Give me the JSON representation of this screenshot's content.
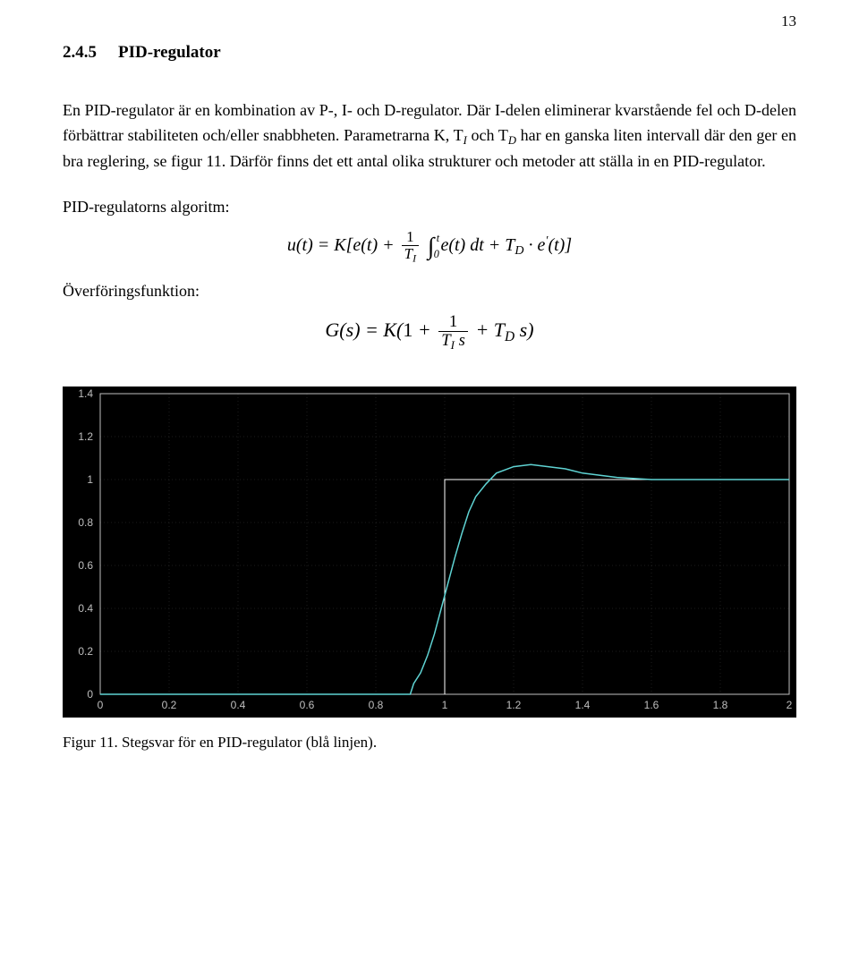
{
  "page_number": "13",
  "section": {
    "number": "2.4.5",
    "title": "PID-regulator"
  },
  "paragraph": "En PID-regulator är en kombination av P-, I- och D-regulator. Där I-delen eliminerar kvarstående fel och D-delen förbättrar stabiliteten och/eller snabbheten. Parametrarna K, T₁ och T_D har en ganska liten intervall där den ger en bra reglering, se figur 11. Därför finns det ett antal olika strukturer och metoder att ställa in en PID-regulator.",
  "algo_label": "PID-regulatorns algoritm:",
  "transfer_label": "Överföringsfunktion:",
  "caption": "Figur 11. Stegsvar för en PID-regulator (blå linjen).",
  "chart": {
    "type": "line",
    "background_color": "#000000",
    "axis_color": "#c0c0c0",
    "grid_color": "#3a3a3a",
    "tick_label_color": "#bfbfbf",
    "tick_fontsize": 12,
    "xlim": [
      0,
      2
    ],
    "ylim": [
      0,
      1.4
    ],
    "xticks": [
      0,
      0.2,
      0.4,
      0.6,
      0.8,
      1,
      1.2,
      1.4,
      1.6,
      1.8,
      2
    ],
    "yticks": [
      0,
      0.2,
      0.4,
      0.6,
      0.8,
      1,
      1.2,
      1.4
    ],
    "curve_color": "#5fd3d3",
    "curve_width": 1.5,
    "curve": [
      [
        0.0,
        0.0
      ],
      [
        0.2,
        0.0
      ],
      [
        0.4,
        0.0
      ],
      [
        0.6,
        0.0
      ],
      [
        0.8,
        0.0
      ],
      [
        0.9,
        0.0
      ],
      [
        0.91,
        0.05
      ],
      [
        0.93,
        0.1
      ],
      [
        0.95,
        0.18
      ],
      [
        0.97,
        0.28
      ],
      [
        0.99,
        0.4
      ],
      [
        1.01,
        0.52
      ],
      [
        1.03,
        0.64
      ],
      [
        1.05,
        0.75
      ],
      [
        1.07,
        0.85
      ],
      [
        1.09,
        0.92
      ],
      [
        1.12,
        0.98
      ],
      [
        1.15,
        1.03
      ],
      [
        1.2,
        1.06
      ],
      [
        1.25,
        1.07
      ],
      [
        1.3,
        1.06
      ],
      [
        1.35,
        1.05
      ],
      [
        1.4,
        1.03
      ],
      [
        1.5,
        1.01
      ],
      [
        1.6,
        1.0
      ],
      [
        1.8,
        1.0
      ],
      [
        2.0,
        1.0
      ]
    ],
    "step_color": "#ffffff",
    "step_width": 1,
    "step": [
      [
        1.0,
        0.0
      ],
      [
        1.0,
        1.0
      ],
      [
        2.0,
        1.0
      ]
    ]
  }
}
